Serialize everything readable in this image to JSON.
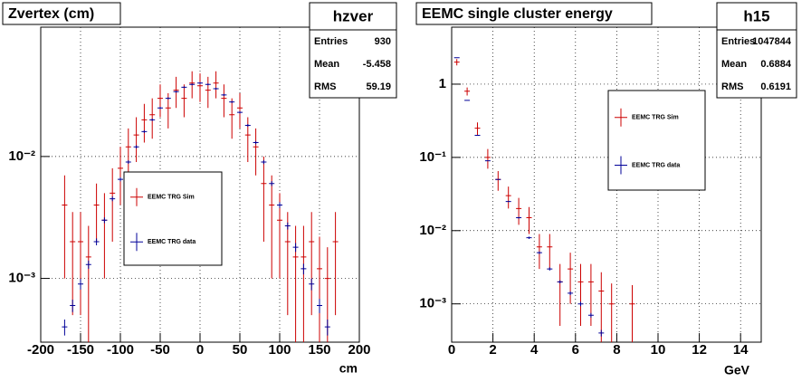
{
  "chart_data": [
    {
      "type": "errorbar",
      "title": "Zvertex (cm)",
      "x_label": "cm",
      "log_y": true,
      "grid": true,
      "xlim": [
        -200,
        200
      ],
      "ylim": [
        0.0003,
        0.115
      ],
      "xticks": [
        -200,
        -150,
        -100,
        -50,
        0,
        50,
        100,
        150,
        200
      ],
      "yticks": [
        {
          "value": 0.01,
          "label": "10⁻²"
        },
        {
          "value": 0.001,
          "label": "10⁻³"
        }
      ],
      "stats": {
        "name": "hzver",
        "entries_label": "Entries",
        "entries": "930",
        "mean_label": "Mean",
        "mean": "-5.458",
        "rms_label": "RMS",
        "rms": "59.19"
      },
      "series": [
        {
          "name": "EEMC TRG Sim",
          "color": "#cc0000",
          "x": [
            -170,
            -160,
            -150,
            -140,
            -130,
            -120,
            -110,
            -100,
            -90,
            -80,
            -70,
            -60,
            -50,
            -40,
            -30,
            -20,
            -10,
            0,
            10,
            20,
            30,
            40,
            50,
            60,
            70,
            80,
            90,
            100,
            110,
            120,
            130,
            140,
            150,
            160,
            170
          ],
          "values": [
            0.004,
            0.002,
            0.002,
            0.0015,
            0.004,
            0.003,
            0.005,
            0.008,
            0.012,
            0.015,
            0.02,
            0.022,
            0.03,
            0.025,
            0.035,
            0.03,
            0.04,
            0.038,
            0.035,
            0.04,
            0.03,
            0.022,
            0.025,
            0.015,
            0.012,
            0.006,
            0.004,
            0.003,
            0.002,
            0.0015,
            0.0015,
            0.002,
            0.0012,
            0.001,
            0.002
          ],
          "errors": [
            0.003,
            0.0015,
            0.0015,
            0.0012,
            0.002,
            0.002,
            0.003,
            0.004,
            0.005,
            0.006,
            0.007,
            0.008,
            0.009,
            0.008,
            0.01,
            0.009,
            0.01,
            0.01,
            0.01,
            0.01,
            0.009,
            0.008,
            0.008,
            0.006,
            0.005,
            0.004,
            0.003,
            0.002,
            0.0015,
            0.0012,
            0.0012,
            0.0015,
            0.001,
            0.0008,
            0.0015
          ]
        },
        {
          "name": "EEMC TRG data",
          "color": "#000099",
          "x": [
            -170,
            -160,
            -150,
            -140,
            -130,
            -120,
            -110,
            -100,
            -90,
            -80,
            -70,
            -60,
            -50,
            -40,
            -30,
            -20,
            -10,
            0,
            10,
            20,
            30,
            40,
            50,
            60,
            70,
            80,
            90,
            100,
            110,
            120,
            130,
            140,
            150,
            160
          ],
          "values": [
            0.0004,
            0.0006,
            0.0009,
            0.0013,
            0.002,
            0.003,
            0.0045,
            0.0065,
            0.009,
            0.012,
            0.016,
            0.02,
            0.025,
            0.03,
            0.034,
            0.037,
            0.039,
            0.04,
            0.039,
            0.036,
            0.032,
            0.028,
            0.023,
            0.018,
            0.013,
            0.009,
            0.006,
            0.004,
            0.0027,
            0.0018,
            0.0012,
            0.0009,
            0.0006,
            0.0004
          ],
          "errors": [
            6e-05,
            7e-05,
            9e-05,
            0.0001,
            0.00013,
            0.00016,
            0.0002,
            0.00025,
            0.0003,
            0.00035,
            0.0004,
            0.00045,
            0.0005,
            0.00055,
            0.0006,
            0.0006,
            0.00065,
            0.00065,
            0.00065,
            0.0006,
            0.0006,
            0.00055,
            0.0005,
            0.00045,
            0.0004,
            0.00033,
            0.00027,
            0.00022,
            0.00018,
            0.00015,
            0.00012,
            0.0001,
            8e-05,
            6e-05
          ]
        }
      ]
    },
    {
      "type": "errorbar",
      "title": "EEMC single cluster energy",
      "x_label": "GeV",
      "log_y": true,
      "grid": true,
      "xlim": [
        0,
        15
      ],
      "ylim": [
        0.0003,
        6
      ],
      "xticks": [
        0,
        2,
        4,
        6,
        8,
        10,
        12,
        14
      ],
      "yticks": [
        1,
        {
          "value": 0.1,
          "label": "10⁻¹"
        },
        {
          "value": 0.01,
          "label": "10⁻²"
        },
        {
          "value": 0.001,
          "label": "10⁻³"
        }
      ],
      "stats": {
        "name": "h15",
        "entries_label": "Entries",
        "entries": "1047844",
        "mean_label": "Mean",
        "mean": "0.6884",
        "rms_label": "RMS",
        "rms": "0.6191"
      },
      "series": [
        {
          "name": "EEMC TRG Sim",
          "color": "#cc0000",
          "x": [
            0.25,
            0.75,
            1.25,
            1.75,
            2.25,
            2.75,
            3.25,
            3.75,
            4.25,
            4.75,
            5.25,
            5.75,
            6.25,
            6.75,
            7.25,
            7.75,
            8.75
          ],
          "values": [
            2.0,
            0.8,
            0.25,
            0.1,
            0.05,
            0.03,
            0.02,
            0.015,
            0.006,
            0.006,
            0.002,
            0.003,
            0.002,
            0.002,
            0.0015,
            0.001,
            0.001
          ],
          "errors": [
            0.2,
            0.1,
            0.05,
            0.03,
            0.015,
            0.01,
            0.008,
            0.006,
            0.003,
            0.003,
            0.0015,
            0.002,
            0.0015,
            0.0015,
            0.0012,
            0.0009,
            0.0008
          ]
        },
        {
          "name": "EEMC TRG data",
          "color": "#000099",
          "x": [
            0.25,
            0.75,
            1.25,
            1.75,
            2.25,
            2.75,
            3.25,
            3.75,
            4.25,
            4.75,
            5.25,
            5.75,
            6.25,
            6.75,
            7.25
          ],
          "values": [
            2.3,
            0.6,
            0.2,
            0.09,
            0.05,
            0.025,
            0.015,
            0.008,
            0.005,
            0.003,
            0.002,
            0.0014,
            0.001,
            0.0007,
            0.0004
          ],
          "errors": [
            0.005,
            0.003,
            0.002,
            0.001,
            0.0008,
            0.0005,
            0.0004,
            0.0003,
            0.0002,
            0.00015,
            0.0001,
            8e-05,
            7e-05,
            5e-05,
            4e-05
          ]
        }
      ]
    }
  ]
}
